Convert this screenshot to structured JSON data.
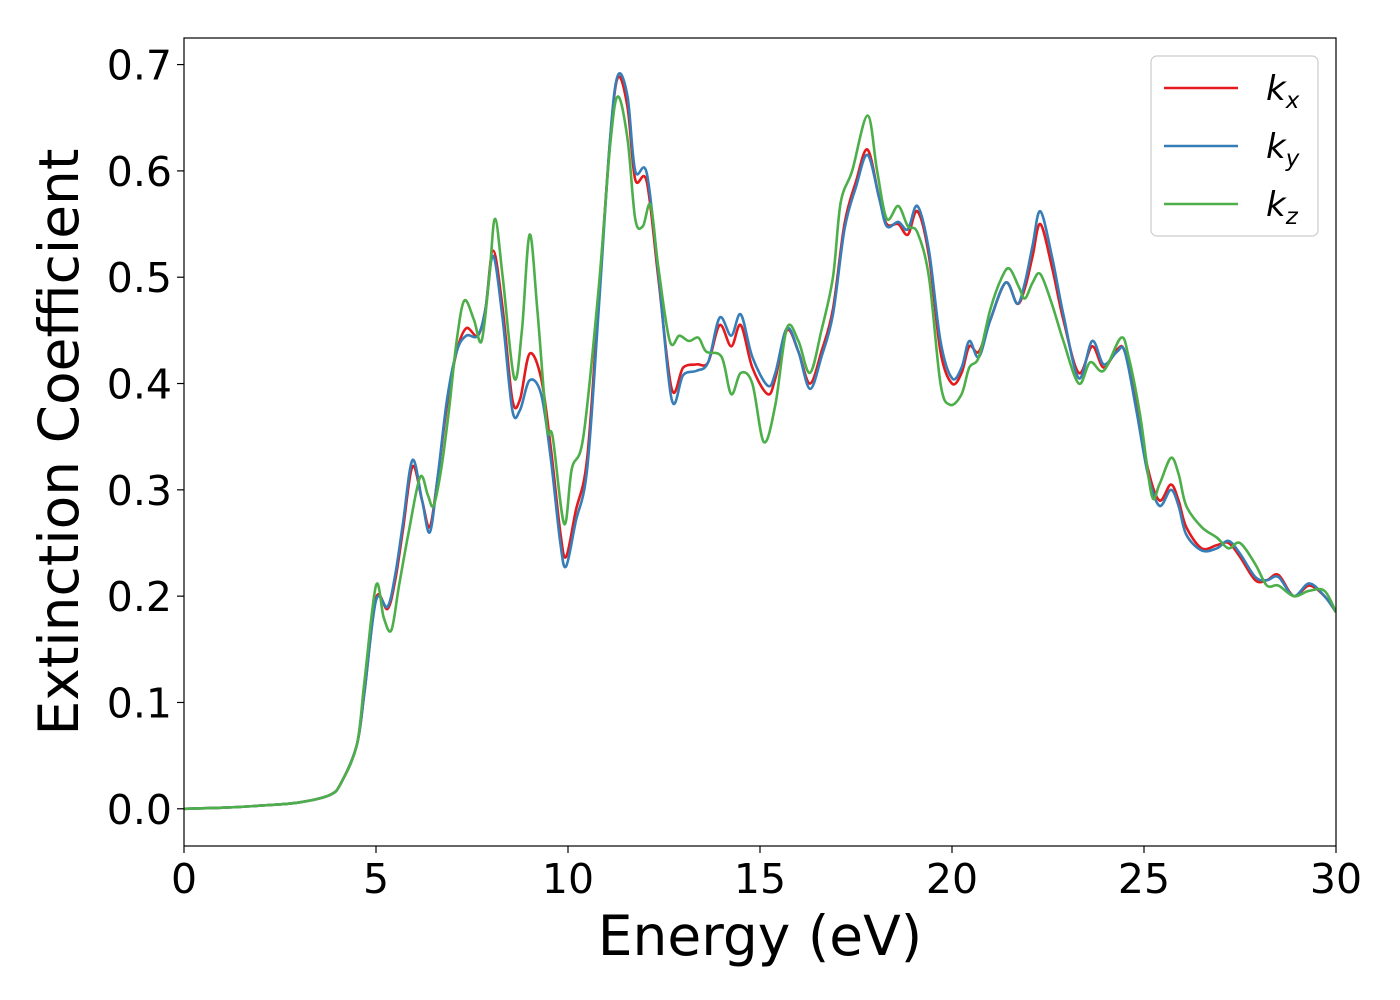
{
  "chart_data": {
    "type": "line",
    "title": "",
    "xlabel": "Energy (eV)",
    "ylabel": "Extinction Coefficient",
    "xlim": [
      0,
      30
    ],
    "ylim": [
      -0.035,
      0.725
    ],
    "xticks": [
      0,
      5,
      10,
      15,
      20,
      25,
      30
    ],
    "xtick_labels": [
      "0",
      "5",
      "10",
      "15",
      "20",
      "25",
      "30"
    ],
    "yticks": [
      0.0,
      0.1,
      0.2,
      0.3,
      0.4,
      0.5,
      0.6,
      0.7
    ],
    "ytick_labels": [
      "0.0",
      "0.1",
      "0.2",
      "0.3",
      "0.4",
      "0.5",
      "0.6",
      "0.7"
    ],
    "grid": false,
    "legend_position": "top-right",
    "series": [
      {
        "name": "k",
        "sub": "x",
        "color": "#e41a1c",
        "points": [
          [
            0,
            0
          ],
          [
            1,
            0.001
          ],
          [
            2,
            0.003
          ],
          [
            3,
            0.006
          ],
          [
            3.8,
            0.013
          ],
          [
            4.1,
            0.025
          ],
          [
            4.5,
            0.06
          ],
          [
            4.7,
            0.11
          ],
          [
            5.0,
            0.198
          ],
          [
            5.3,
            0.188
          ],
          [
            5.5,
            0.215
          ],
          [
            5.7,
            0.262
          ],
          [
            5.95,
            0.322
          ],
          [
            6.2,
            0.29
          ],
          [
            6.4,
            0.265
          ],
          [
            6.6,
            0.31
          ],
          [
            6.85,
            0.38
          ],
          [
            7.1,
            0.43
          ],
          [
            7.35,
            0.452
          ],
          [
            7.65,
            0.445
          ],
          [
            7.85,
            0.47
          ],
          [
            8.05,
            0.525
          ],
          [
            8.3,
            0.47
          ],
          [
            8.55,
            0.385
          ],
          [
            8.75,
            0.385
          ],
          [
            9.0,
            0.428
          ],
          [
            9.3,
            0.405
          ],
          [
            9.55,
            0.34
          ],
          [
            9.8,
            0.26
          ],
          [
            9.95,
            0.237
          ],
          [
            10.2,
            0.28
          ],
          [
            10.5,
            0.33
          ],
          [
            10.8,
            0.48
          ],
          [
            11.1,
            0.63
          ],
          [
            11.3,
            0.688
          ],
          [
            11.55,
            0.66
          ],
          [
            11.75,
            0.592
          ],
          [
            12.05,
            0.59
          ],
          [
            12.35,
            0.5
          ],
          [
            12.7,
            0.395
          ],
          [
            13.0,
            0.415
          ],
          [
            13.35,
            0.418
          ],
          [
            13.65,
            0.42
          ],
          [
            13.95,
            0.455
          ],
          [
            14.25,
            0.435
          ],
          [
            14.5,
            0.455
          ],
          [
            14.8,
            0.415
          ],
          [
            15.2,
            0.39
          ],
          [
            15.4,
            0.405
          ],
          [
            15.7,
            0.45
          ],
          [
            16.0,
            0.43
          ],
          [
            16.3,
            0.4
          ],
          [
            16.6,
            0.43
          ],
          [
            16.9,
            0.47
          ],
          [
            17.2,
            0.55
          ],
          [
            17.5,
            0.59
          ],
          [
            17.8,
            0.62
          ],
          [
            18.1,
            0.575
          ],
          [
            18.3,
            0.55
          ],
          [
            18.6,
            0.55
          ],
          [
            18.85,
            0.54
          ],
          [
            19.1,
            0.562
          ],
          [
            19.4,
            0.52
          ],
          [
            19.7,
            0.43
          ],
          [
            20.0,
            0.4
          ],
          [
            20.25,
            0.41
          ],
          [
            20.45,
            0.435
          ],
          [
            20.7,
            0.43
          ],
          [
            21.0,
            0.46
          ],
          [
            21.4,
            0.495
          ],
          [
            21.7,
            0.475
          ],
          [
            21.9,
            0.49
          ],
          [
            22.1,
            0.52
          ],
          [
            22.3,
            0.55
          ],
          [
            22.6,
            0.51
          ],
          [
            22.9,
            0.46
          ],
          [
            23.3,
            0.41
          ],
          [
            23.65,
            0.435
          ],
          [
            23.95,
            0.415
          ],
          [
            24.3,
            0.432
          ],
          [
            24.5,
            0.43
          ],
          [
            24.8,
            0.38
          ],
          [
            25.1,
            0.32
          ],
          [
            25.4,
            0.29
          ],
          [
            25.7,
            0.305
          ],
          [
            25.9,
            0.29
          ],
          [
            26.1,
            0.265
          ],
          [
            26.5,
            0.245
          ],
          [
            26.9,
            0.248
          ],
          [
            27.2,
            0.25
          ],
          [
            27.5,
            0.237
          ],
          [
            27.9,
            0.215
          ],
          [
            28.2,
            0.215
          ],
          [
            28.5,
            0.22
          ],
          [
            28.9,
            0.2
          ],
          [
            29.3,
            0.21
          ],
          [
            29.7,
            0.2
          ],
          [
            30,
            0.185
          ]
        ]
      },
      {
        "name": "k",
        "sub": "y",
        "color": "#377eb8",
        "points": [
          [
            0,
            0
          ],
          [
            1,
            0.001
          ],
          [
            2,
            0.003
          ],
          [
            3,
            0.006
          ],
          [
            3.8,
            0.013
          ],
          [
            4.1,
            0.025
          ],
          [
            4.5,
            0.06
          ],
          [
            4.7,
            0.11
          ],
          [
            5.0,
            0.196
          ],
          [
            5.3,
            0.19
          ],
          [
            5.5,
            0.22
          ],
          [
            5.7,
            0.268
          ],
          [
            5.95,
            0.328
          ],
          [
            6.2,
            0.29
          ],
          [
            6.4,
            0.26
          ],
          [
            6.6,
            0.31
          ],
          [
            6.85,
            0.385
          ],
          [
            7.1,
            0.43
          ],
          [
            7.35,
            0.445
          ],
          [
            7.65,
            0.445
          ],
          [
            7.85,
            0.47
          ],
          [
            8.05,
            0.52
          ],
          [
            8.3,
            0.46
          ],
          [
            8.55,
            0.375
          ],
          [
            8.75,
            0.375
          ],
          [
            9.0,
            0.403
          ],
          [
            9.3,
            0.39
          ],
          [
            9.55,
            0.33
          ],
          [
            9.8,
            0.25
          ],
          [
            9.95,
            0.228
          ],
          [
            10.2,
            0.27
          ],
          [
            10.5,
            0.32
          ],
          [
            10.8,
            0.47
          ],
          [
            11.1,
            0.632
          ],
          [
            11.3,
            0.69
          ],
          [
            11.55,
            0.67
          ],
          [
            11.75,
            0.6
          ],
          [
            12.05,
            0.598
          ],
          [
            12.35,
            0.505
          ],
          [
            12.7,
            0.385
          ],
          [
            13.0,
            0.408
          ],
          [
            13.35,
            0.412
          ],
          [
            13.65,
            0.42
          ],
          [
            13.95,
            0.462
          ],
          [
            14.25,
            0.445
          ],
          [
            14.5,
            0.465
          ],
          [
            14.8,
            0.425
          ],
          [
            15.2,
            0.398
          ],
          [
            15.4,
            0.41
          ],
          [
            15.7,
            0.452
          ],
          [
            16.0,
            0.43
          ],
          [
            16.3,
            0.395
          ],
          [
            16.6,
            0.425
          ],
          [
            16.9,
            0.465
          ],
          [
            17.2,
            0.545
          ],
          [
            17.5,
            0.585
          ],
          [
            17.8,
            0.615
          ],
          [
            18.1,
            0.575
          ],
          [
            18.3,
            0.548
          ],
          [
            18.6,
            0.552
          ],
          [
            18.85,
            0.545
          ],
          [
            19.1,
            0.567
          ],
          [
            19.4,
            0.525
          ],
          [
            19.7,
            0.44
          ],
          [
            20.0,
            0.405
          ],
          [
            20.25,
            0.415
          ],
          [
            20.45,
            0.44
          ],
          [
            20.7,
            0.425
          ],
          [
            21.0,
            0.46
          ],
          [
            21.4,
            0.495
          ],
          [
            21.7,
            0.475
          ],
          [
            21.9,
            0.495
          ],
          [
            22.1,
            0.53
          ],
          [
            22.3,
            0.562
          ],
          [
            22.6,
            0.52
          ],
          [
            22.9,
            0.465
          ],
          [
            23.3,
            0.405
          ],
          [
            23.65,
            0.44
          ],
          [
            23.95,
            0.418
          ],
          [
            24.3,
            0.43
          ],
          [
            24.5,
            0.43
          ],
          [
            24.8,
            0.375
          ],
          [
            25.1,
            0.315
          ],
          [
            25.4,
            0.285
          ],
          [
            25.7,
            0.3
          ],
          [
            25.9,
            0.285
          ],
          [
            26.1,
            0.258
          ],
          [
            26.5,
            0.243
          ],
          [
            26.9,
            0.245
          ],
          [
            27.2,
            0.252
          ],
          [
            27.5,
            0.24
          ],
          [
            27.9,
            0.218
          ],
          [
            28.2,
            0.215
          ],
          [
            28.5,
            0.218
          ],
          [
            28.9,
            0.2
          ],
          [
            29.3,
            0.212
          ],
          [
            29.7,
            0.2
          ],
          [
            30,
            0.185
          ]
        ]
      },
      {
        "name": "k",
        "sub": "z",
        "color": "#4daf4a",
        "points": [
          [
            0,
            0
          ],
          [
            1,
            0.001
          ],
          [
            2,
            0.003
          ],
          [
            3,
            0.006
          ],
          [
            3.8,
            0.013
          ],
          [
            4.1,
            0.025
          ],
          [
            4.5,
            0.06
          ],
          [
            4.7,
            0.12
          ],
          [
            5.0,
            0.21
          ],
          [
            5.2,
            0.18
          ],
          [
            5.4,
            0.168
          ],
          [
            5.6,
            0.21
          ],
          [
            5.85,
            0.26
          ],
          [
            6.15,
            0.312
          ],
          [
            6.35,
            0.295
          ],
          [
            6.5,
            0.285
          ],
          [
            6.7,
            0.32
          ],
          [
            6.9,
            0.375
          ],
          [
            7.1,
            0.44
          ],
          [
            7.3,
            0.478
          ],
          [
            7.55,
            0.46
          ],
          [
            7.75,
            0.44
          ],
          [
            7.95,
            0.5
          ],
          [
            8.1,
            0.555
          ],
          [
            8.3,
            0.5
          ],
          [
            8.6,
            0.405
          ],
          [
            8.8,
            0.45
          ],
          [
            9.0,
            0.54
          ],
          [
            9.2,
            0.47
          ],
          [
            9.45,
            0.36
          ],
          [
            9.6,
            0.35
          ],
          [
            9.9,
            0.268
          ],
          [
            10.1,
            0.32
          ],
          [
            10.4,
            0.35
          ],
          [
            10.8,
            0.49
          ],
          [
            11.1,
            0.625
          ],
          [
            11.3,
            0.67
          ],
          [
            11.55,
            0.63
          ],
          [
            11.75,
            0.555
          ],
          [
            11.95,
            0.548
          ],
          [
            12.15,
            0.568
          ],
          [
            12.35,
            0.51
          ],
          [
            12.65,
            0.44
          ],
          [
            12.9,
            0.445
          ],
          [
            13.15,
            0.44
          ],
          [
            13.4,
            0.443
          ],
          [
            13.6,
            0.43
          ],
          [
            14.0,
            0.425
          ],
          [
            14.25,
            0.39
          ],
          [
            14.5,
            0.41
          ],
          [
            14.8,
            0.4
          ],
          [
            15.1,
            0.345
          ],
          [
            15.4,
            0.38
          ],
          [
            15.7,
            0.452
          ],
          [
            16.0,
            0.44
          ],
          [
            16.3,
            0.41
          ],
          [
            16.6,
            0.45
          ],
          [
            16.9,
            0.5
          ],
          [
            17.1,
            0.57
          ],
          [
            17.4,
            0.6
          ],
          [
            17.8,
            0.652
          ],
          [
            18.05,
            0.6
          ],
          [
            18.3,
            0.555
          ],
          [
            18.6,
            0.567
          ],
          [
            18.85,
            0.548
          ],
          [
            19.1,
            0.542
          ],
          [
            19.4,
            0.5
          ],
          [
            19.7,
            0.4
          ],
          [
            19.95,
            0.38
          ],
          [
            20.25,
            0.39
          ],
          [
            20.45,
            0.415
          ],
          [
            20.7,
            0.425
          ],
          [
            21.0,
            0.47
          ],
          [
            21.3,
            0.5
          ],
          [
            21.5,
            0.508
          ],
          [
            21.75,
            0.49
          ],
          [
            21.9,
            0.48
          ],
          [
            22.1,
            0.495
          ],
          [
            22.3,
            0.503
          ],
          [
            22.6,
            0.475
          ],
          [
            22.9,
            0.44
          ],
          [
            23.3,
            0.4
          ],
          [
            23.6,
            0.42
          ],
          [
            23.95,
            0.412
          ],
          [
            24.4,
            0.443
          ],
          [
            24.6,
            0.425
          ],
          [
            24.9,
            0.37
          ],
          [
            25.2,
            0.295
          ],
          [
            25.4,
            0.305
          ],
          [
            25.7,
            0.33
          ],
          [
            25.9,
            0.315
          ],
          [
            26.1,
            0.285
          ],
          [
            26.5,
            0.265
          ],
          [
            26.9,
            0.255
          ],
          [
            27.2,
            0.245
          ],
          [
            27.5,
            0.25
          ],
          [
            27.9,
            0.23
          ],
          [
            28.2,
            0.21
          ],
          [
            28.5,
            0.21
          ],
          [
            28.9,
            0.2
          ],
          [
            29.3,
            0.205
          ],
          [
            29.7,
            0.205
          ],
          [
            30,
            0.185
          ]
        ]
      }
    ]
  }
}
